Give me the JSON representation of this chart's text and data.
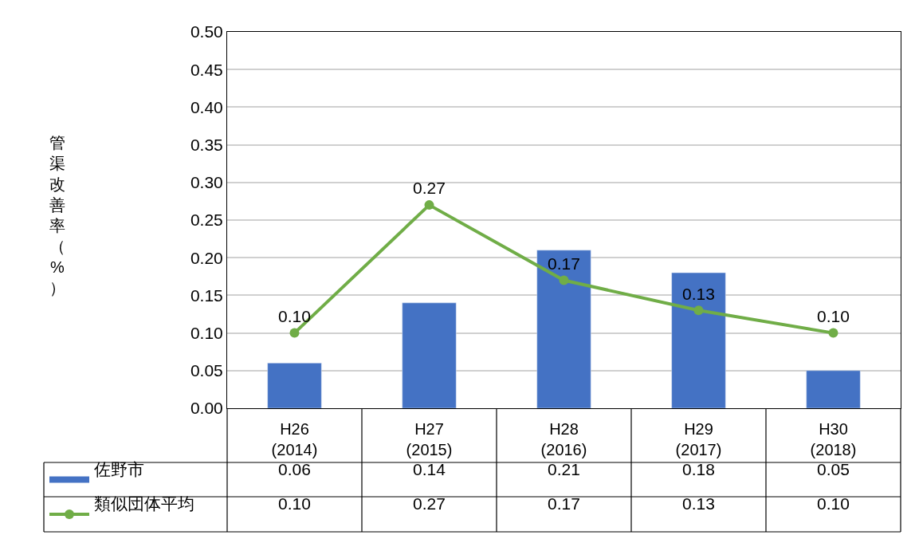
{
  "chart_data": {
    "type": "bar",
    "annotations": [
      "管渠改善率（%）"
    ],
    "categories": [
      "H26\n(2014)",
      "H27\n(2015)",
      "H28\n(2016)",
      "H29\n(2017)",
      "H30\n(2018)"
    ],
    "series": [
      {
        "name": "佐野市",
        "color": "#4472c4",
        "values": [
          0.06,
          0.14,
          0.21,
          0.18,
          0.05
        ],
        "value_labels": [
          "0.06",
          "0.14",
          "0.21",
          "0.18",
          "0.05"
        ]
      },
      {
        "name": "類似団体平均",
        "type": "line",
        "color": "#70ad47",
        "values": [
          0.1,
          0.27,
          0.17,
          0.13,
          0.1
        ],
        "marker": "circle",
        "value_labels": [
          "0.10",
          "0.27",
          "0.17",
          "0.13",
          "0.10"
        ]
      }
    ],
    "ylim": [
      0,
      0.5
    ],
    "yticks": [
      {
        "value": 0,
        "label": "0.00"
      },
      {
        "value": 0.05,
        "label": "0.05"
      },
      {
        "value": 0.1,
        "label": "0.10"
      },
      {
        "value": 0.15,
        "label": "0.15"
      },
      {
        "value": 0.2,
        "label": "0.20"
      },
      {
        "value": 0.25,
        "label": "0.25"
      },
      {
        "value": 0.3,
        "label": "0.30"
      },
      {
        "value": 0.35,
        "label": "0.35"
      },
      {
        "value": 0.4,
        "label": "0.40"
      },
      {
        "value": 0.45,
        "label": "0.45"
      },
      {
        "value": 0.5,
        "label": "0.50"
      }
    ],
    "grid": "y",
    "legend": "bottom"
  }
}
